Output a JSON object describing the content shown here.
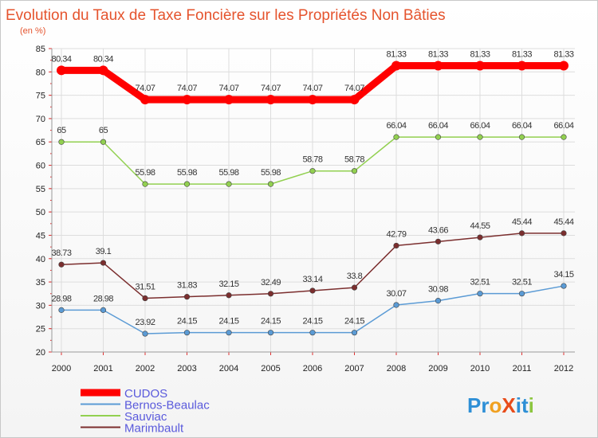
{
  "chart_data": {
    "type": "line",
    "title": "Evolution du Taux de Taxe Foncière sur les Propriétés Non Bâties",
    "subtitle": "(en %)",
    "xlabel": "",
    "ylabel": "",
    "x": [
      2000,
      2001,
      2002,
      2003,
      2004,
      2005,
      2006,
      2007,
      2008,
      2009,
      2010,
      2011,
      2012
    ],
    "x_tick_labels": [
      "2000",
      "2001",
      "2002",
      "2003",
      "2004",
      "2005",
      "2006",
      "2007",
      "2008",
      "2009",
      "2010",
      "2011",
      "2012"
    ],
    "ylim": [
      20,
      85
    ],
    "y_ticks": [
      20,
      25,
      30,
      35,
      40,
      45,
      50,
      55,
      60,
      65,
      70,
      75,
      80,
      85
    ],
    "y_tick_labels": [
      "20",
      "25",
      "30",
      "35",
      "40",
      "45",
      "50",
      "55",
      "60",
      "65",
      "70",
      "75",
      "80",
      "85"
    ],
    "grid": true,
    "legend_position": "bottom-left",
    "series": [
      {
        "name": "CUDOS",
        "color": "#ff0000",
        "values": [
          80.34,
          80.34,
          74.07,
          74.07,
          74.07,
          74.07,
          74.07,
          74.07,
          81.33,
          81.33,
          81.33,
          81.33,
          81.33
        ],
        "labels": [
          "80.34",
          "80.34",
          "74.07",
          "74.07",
          "74.07",
          "74.07",
          "74.07",
          "74.07",
          "81.33",
          "81.33",
          "81.33",
          "81.33",
          "81.33"
        ]
      },
      {
        "name": "Bernos-Beaulac",
        "color": "#5b9bd5",
        "values": [
          28.98,
          28.98,
          23.92,
          24.15,
          24.15,
          24.15,
          24.15,
          24.15,
          30.07,
          30.98,
          32.51,
          32.51,
          34.15
        ],
        "labels": [
          "28.98",
          "28.98",
          "23.92",
          "24.15",
          "24.15",
          "24.15",
          "24.15",
          "24.15",
          "30.07",
          "30.98",
          "32.51",
          "32.51",
          "34.15"
        ]
      },
      {
        "name": "Sauviac",
        "color": "#92d050",
        "values": [
          65,
          65,
          55.98,
          55.98,
          55.98,
          55.98,
          58.78,
          58.78,
          66.04,
          66.04,
          66.04,
          66.04,
          66.04
        ],
        "labels": [
          "65",
          "65",
          "55.98",
          "55.98",
          "55.98",
          "55.98",
          "58.78",
          "58.78",
          "66.04",
          "66.04",
          "66.04",
          "66.04",
          "66.04"
        ]
      },
      {
        "name": "Marimbault",
        "color": "#7b2e2e",
        "values": [
          38.73,
          39.1,
          31.51,
          31.83,
          32.15,
          32.49,
          33.14,
          33.8,
          42.79,
          43.66,
          44.55,
          45.44,
          45.44
        ],
        "labels": [
          "38.73",
          "39.1",
          "31.51",
          "31.83",
          "32.15",
          "32.49",
          "33.14",
          "33.8",
          "42.79",
          "43.66",
          "44.55",
          "45.44",
          "45.44"
        ]
      }
    ]
  },
  "brand": {
    "logo_text": "ProXiti",
    "letters": [
      "P",
      "r",
      "o",
      "X",
      "i",
      "t",
      "i"
    ],
    "letter_colors": [
      "#2e8fd6",
      "#2e8fd6",
      "#f0a020",
      "#e84c1a",
      "#2e8fd6",
      "#2e8fd6",
      "#8cc63f"
    ]
  }
}
